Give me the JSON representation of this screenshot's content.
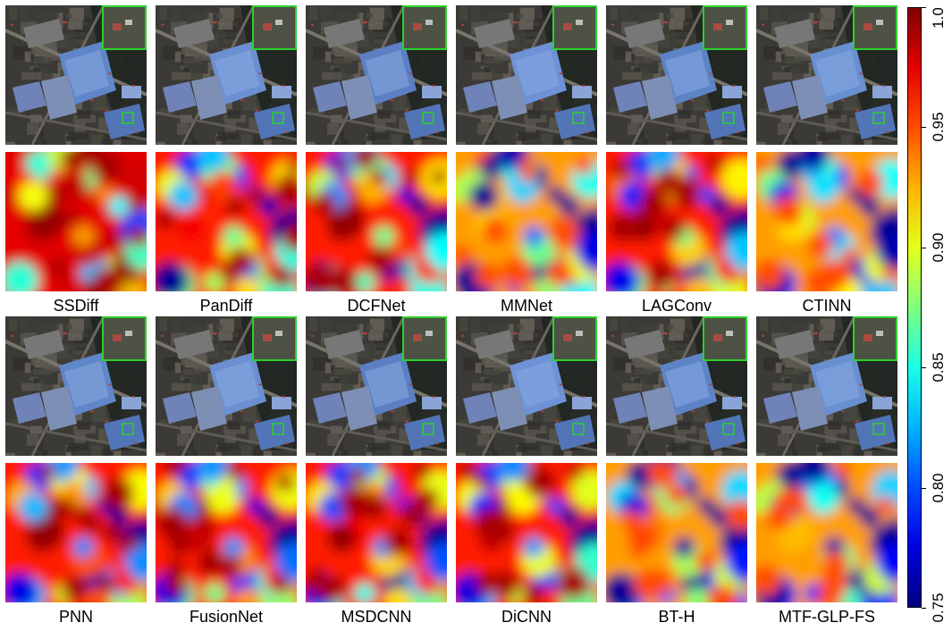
{
  "panels": [
    {
      "method": "SSDiff",
      "quality": "high"
    },
    {
      "method": "PanDiff",
      "quality": "mid"
    },
    {
      "method": "DCFNet",
      "quality": "mid"
    },
    {
      "method": "MMNet",
      "quality": "low"
    },
    {
      "method": "LAGConv",
      "quality": "mid"
    },
    {
      "method": "CTINN",
      "quality": "low"
    },
    {
      "method": "PNN",
      "quality": "mid"
    },
    {
      "method": "FusionNet",
      "quality": "mid"
    },
    {
      "method": "MSDCNN",
      "quality": "mid"
    },
    {
      "method": "DiCNN",
      "quality": "mid"
    },
    {
      "method": "BT-H",
      "quality": "low"
    },
    {
      "method": "MTF-GLP-FS",
      "quality": "low"
    }
  ],
  "colorbar": {
    "colormap": "jet",
    "min": 0.75,
    "max": 1.0,
    "ticks": [
      "0.75",
      "0.80",
      "0.85",
      "0.90",
      "0.95",
      "1.0"
    ],
    "tick_values": [
      0.75,
      0.8,
      0.85,
      0.9,
      0.95,
      1.0
    ]
  },
  "zoom_inset_color": "#2bd12b"
}
